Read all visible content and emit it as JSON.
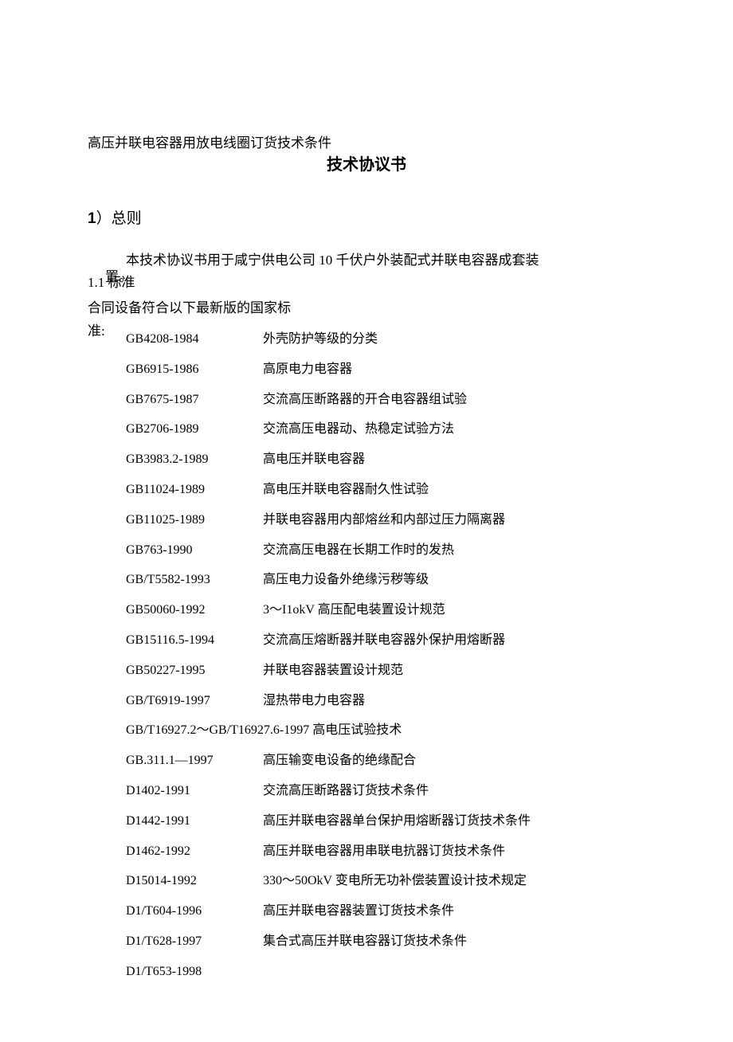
{
  "preTitle": "高压并联电容器用放电线圈订货技术条件",
  "title": "技术协议书",
  "section1": {
    "num": "1",
    "label": "）总则"
  },
  "intro": {
    "text": "本技术协议书用于咸宁供电公司 10 千伏户外装配式并联电容器成套装",
    "suffix": "置。"
  },
  "subHeading": "1.1 标准",
  "preStandards": "合同设备符合以下最新版的国家标",
  "preStandardsCont": "准:",
  "standards": [
    {
      "code": "GB4208-1984",
      "desc": "外壳防护等级的分类"
    },
    {
      "code": "GB6915-1986",
      "desc": "高原电力电容器"
    },
    {
      "code": "GB7675-1987",
      "desc": "交流高压断路器的开合电容器组试验"
    },
    {
      "code": "GB2706-1989",
      "desc": "交流高压电器动、热稳定试验方法"
    },
    {
      "code": "GB3983.2-1989",
      "desc": "高电压并联电容器"
    },
    {
      "code": "GB11024-1989",
      "desc": "高电压并联电容器耐久性试验"
    },
    {
      "code": "GB11025-1989",
      "desc": "并联电容器用内部熔丝和内部过压力隔离器"
    },
    {
      "code": "GB763-1990",
      "desc": "交流高压电器在长期工作时的发热"
    },
    {
      "code": "GB/T5582-1993",
      "desc": "高压电力设备外绝缘污秽等级"
    },
    {
      "code": "GB50060-1992",
      "desc": " 3～I1okV 高压配电装置设计规范"
    },
    {
      "code": "GB15116.5-1994",
      "desc": "交流高压熔断器并联电容器外保护用熔断器"
    },
    {
      "code": "GB50227-1995",
      "desc": " 并联电容器装置设计规范"
    },
    {
      "code": "GB/T6919-1997",
      "desc": " 湿热带电力电容器"
    }
  ],
  "wideStandard": "GB/T16927.2～GB/T16927.6-1997 高电压试验技术",
  "standards2": [
    {
      "code": "GB.311.1—1997",
      "desc": "高压输变电设备的绝缘配合"
    },
    {
      "code": "D1402-1991",
      "desc": "交流高压断路器订货技术条件"
    },
    {
      "code": "D1442-1991",
      "desc": "高压并联电容器单台保护用熔断器订货技术条件"
    },
    {
      "code": "D1462-1992",
      "desc": "高压并联电容器用串联电抗器订货技术条件"
    },
    {
      "code": "D15014-1992",
      "desc": "330～50OkV 变电所无功补偿装置设计技术规定"
    },
    {
      "code": "D1/T604-1996",
      "desc": "高压并联电容器装置订货技术条件"
    },
    {
      "code": "D1/T628-1997",
      "desc": "集合式高压并联电容器订货技术条件"
    },
    {
      "code": "D1/T653-1998",
      "desc": ""
    }
  ]
}
